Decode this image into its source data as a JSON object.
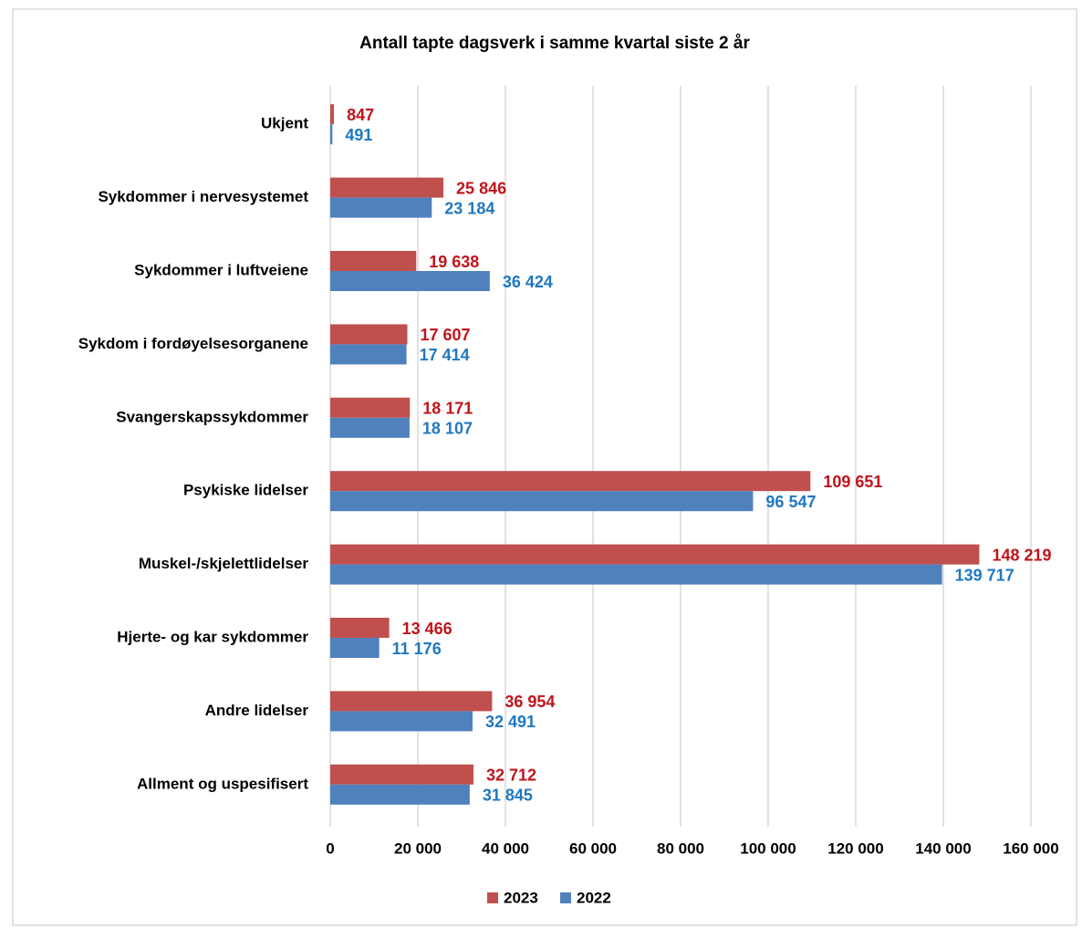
{
  "chart_data": {
    "type": "bar",
    "orientation": "horizontal",
    "title": "Antall tapte dagsverk i samme kvartal siste 2 år",
    "categories": [
      "Ukjent",
      "Sykdommer i nervesystemet",
      "Sykdommer i luftveiene",
      "Sykdom i fordøyelsesorganene",
      "Svangerskapssykdommer",
      "Psykiske lidelser",
      "Muskel-/skjelettlidelser",
      "Hjerte- og kar sykdommer",
      "Andre lidelser",
      "Allment og uspesifisert"
    ],
    "series": [
      {
        "name": "2023",
        "color": "#c0504d",
        "values": [
          847,
          25846,
          19638,
          17607,
          18171,
          109651,
          148219,
          13466,
          36954,
          32712
        ],
        "value_labels": [
          "847",
          "25 846",
          "19 638",
          "17 607",
          "18 171",
          "109 651",
          "148 219",
          "13 466",
          "36 954",
          "32 712"
        ]
      },
      {
        "name": "2022",
        "color": "#4f81bd",
        "values": [
          491,
          23184,
          36424,
          17414,
          18107,
          96547,
          139717,
          11176,
          32491,
          31845
        ],
        "value_labels": [
          "491",
          "23 184",
          "36 424",
          "17 414",
          "18 107",
          "96 547",
          "139 717",
          "11 176",
          "32 491",
          "31 845"
        ]
      }
    ],
    "xlim": [
      0,
      160000
    ],
    "xticks": [
      0,
      {
        "value": 20000,
        "label": "20 000"
      },
      {
        "value": 40000,
        "label": "40 000"
      },
      {
        "value": 60000,
        "label": "60 000"
      },
      {
        "value": 80000,
        "label": "80 000"
      },
      {
        "value": 100000,
        "label": "100 000"
      },
      {
        "value": 120000,
        "label": "120 000"
      },
      {
        "value": 140000,
        "label": "140 000"
      },
      {
        "value": 160000,
        "label": "160 000"
      }
    ],
    "grid": true,
    "legend": "bottom"
  }
}
